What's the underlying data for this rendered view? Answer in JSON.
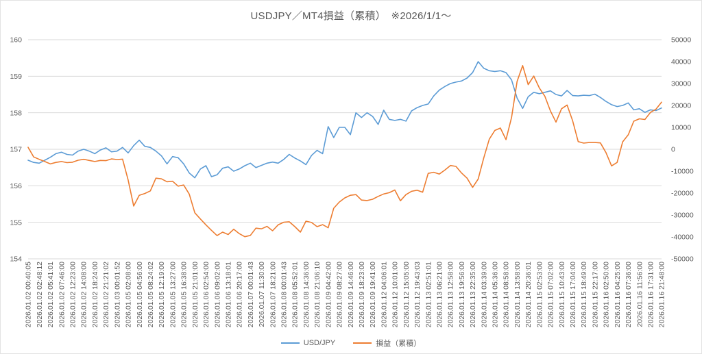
{
  "title": "USDJPY／MT4損益（累積）　※2026/1/1～",
  "legend": [
    {
      "label": "USD/JPY",
      "color": "#5B9BD5"
    },
    {
      "label": "損益（累積）",
      "color": "#ED7D31"
    }
  ],
  "colors": {
    "usdjpy_line": "#5B9BD5",
    "pnl_line": "#ED7D31",
    "gridline": "#D9D9D9",
    "axis_text": "#595959",
    "background": "#FFFFFF"
  },
  "chart_data": {
    "type": "line",
    "title": "USDJPY／MT4損益（累積）　※2026/1/1～",
    "xlabel": "",
    "ylabel_left": "",
    "ylabel_right": "",
    "grid": true,
    "legend_position": "bottom",
    "points_per_tick": 2,
    "x_tick_labels": [
      "2026.01.02 00:40:05",
      "2026.01.02 02:48:12",
      "2026.01.02 05:41:01",
      "2026.01.02 07:46:00",
      "2026.01.02 12:23:00",
      "2026.01.02 14:08:00",
      "2026.01.02 18:24:00",
      "2026.01.02 21:21:02",
      "2026.01.03 00:01:52",
      "2026.01.05 02:08:00",
      "2026.01.05 04:56:00",
      "2026.01.05 08:24:02",
      "2026.01.05 12:19:00",
      "2026.01.05 13:27:00",
      "2026.01.05 16:38:00",
      "2026.01.05 21:01:00",
      "2026.01.06 02:54:00",
      "2026.01.06 09:02:00",
      "2026.01.06 13:18:01",
      "2026.01.06 20:17:00",
      "2026.01.07 00:01:43",
      "2026.01.07 11:30:00",
      "2026.01.07 18:21:00",
      "2026.01.08 00:01:43",
      "2026.01.08 05:52:01",
      "2026.01.08 14:36:00",
      "2026.01.08 21:06:10",
      "2026.01.09 04:42:00",
      "2026.01.09 08:27:00",
      "2026.01.09 14:46:00",
      "2026.01.09 18:23:00",
      "2026.01.09 19:41:00",
      "2026.01.12 04:06:01",
      "2026.01.12 10:01:00",
      "2026.01.12 15:05:00",
      "2026.01.12 19:43:03",
      "2026.01.13 02:51:01",
      "2026.01.13 06:21:00",
      "2026.01.13 12:58:00",
      "2026.01.13 19:56:00",
      "2026.01.13 22:35:00",
      "2026.01.14 03:39:00",
      "2026.01.14 05:36:00",
      "2026.01.14 08:58:00",
      "2026.01.14 13:58:00",
      "2026.01.14 20:36:01",
      "2026.01.15 02:53:00",
      "2026.01.15 07:02:00",
      "2026.01.15 10:43:00",
      "2026.01.15 17:04:00",
      "2026.01.15 18:49:00",
      "2026.01.15 22:17:00",
      "2026.01.16 02:50:00",
      "2026.01.16 04:25:00",
      "2026.01.16 07:36:00",
      "2026.01.16 11:56:00",
      "2026.01.16 17:31:00",
      "2026.01.16 21:48:00"
    ],
    "left_axis": {
      "min": 154,
      "max": 160,
      "step": 1,
      "ticks": [
        160,
        159,
        158,
        157,
        156,
        155,
        154
      ]
    },
    "right_axis": {
      "min": -50000,
      "max": 50000,
      "step": 10000,
      "ticks": [
        50000,
        40000,
        30000,
        20000,
        10000,
        0,
        -10000,
        -20000,
        -30000,
        -40000,
        -50000
      ]
    },
    "series": [
      {
        "name": "USD/JPY",
        "axis": "left",
        "color": "#5B9BD5",
        "values": [
          156.7,
          156.64,
          156.62,
          156.7,
          156.78,
          156.88,
          156.92,
          156.86,
          156.84,
          156.95,
          157.0,
          156.95,
          156.88,
          156.98,
          157.04,
          156.93,
          156.95,
          157.05,
          156.9,
          157.1,
          157.25,
          157.08,
          157.05,
          156.95,
          156.82,
          156.6,
          156.8,
          156.77,
          156.6,
          156.35,
          156.22,
          156.46,
          156.55,
          156.25,
          156.3,
          156.48,
          156.52,
          156.4,
          156.46,
          156.55,
          156.62,
          156.5,
          156.56,
          156.62,
          156.65,
          156.62,
          156.72,
          156.86,
          156.76,
          156.68,
          156.58,
          156.83,
          156.97,
          156.88,
          157.62,
          157.32,
          157.6,
          157.6,
          157.4,
          158.0,
          157.87,
          158.0,
          157.9,
          157.68,
          158.07,
          157.82,
          157.79,
          157.82,
          157.77,
          158.05,
          158.14,
          158.2,
          158.24,
          158.46,
          158.62,
          158.72,
          158.8,
          158.84,
          158.87,
          158.95,
          159.1,
          159.4,
          159.22,
          159.15,
          159.13,
          159.15,
          159.1,
          158.9,
          158.4,
          158.12,
          158.44,
          158.56,
          158.52,
          158.56,
          158.6,
          158.5,
          158.46,
          158.61,
          158.47,
          158.46,
          158.48,
          158.47,
          158.51,
          158.42,
          158.31,
          158.22,
          158.17,
          158.2,
          158.27,
          158.08,
          158.11,
          158.01,
          158.08,
          158.06,
          158.13
        ]
      },
      {
        "name": "損益（累積）",
        "axis": "right",
        "color": "#ED7D31",
        "values": [
          900,
          -3500,
          -4600,
          -5600,
          -6700,
          -6000,
          -5600,
          -6100,
          -5900,
          -5000,
          -4600,
          -5100,
          -5600,
          -5100,
          -5200,
          -4400,
          -4700,
          -4500,
          -14000,
          -25900,
          -21000,
          -20200,
          -19000,
          -13200,
          -13500,
          -14800,
          -14600,
          -16800,
          -16300,
          -20500,
          -29000,
          -31800,
          -34500,
          -37000,
          -39400,
          -37800,
          -38900,
          -36500,
          -38500,
          -39900,
          -39300,
          -36000,
          -36300,
          -35200,
          -37200,
          -34500,
          -33300,
          -33100,
          -35300,
          -37800,
          -32800,
          -33400,
          -35300,
          -34400,
          -35800,
          -26900,
          -24100,
          -22200,
          -21000,
          -20700,
          -23200,
          -23400,
          -22800,
          -21500,
          -20400,
          -19800,
          -18600,
          -23500,
          -20700,
          -19200,
          -18700,
          -19600,
          -11000,
          -10500,
          -11300,
          -9500,
          -7400,
          -7800,
          -10800,
          -13200,
          -17400,
          -13600,
          -4000,
          4600,
          8600,
          9700,
          4400,
          14500,
          31000,
          38200,
          29500,
          33400,
          28000,
          24200,
          17500,
          12400,
          18500,
          20200,
          13000,
          3500,
          2800,
          3100,
          3100,
          2900,
          -1500,
          -7600,
          -6000,
          3400,
          6600,
          12800,
          13900,
          13600,
          16800,
          18300,
          21500
        ]
      }
    ]
  }
}
